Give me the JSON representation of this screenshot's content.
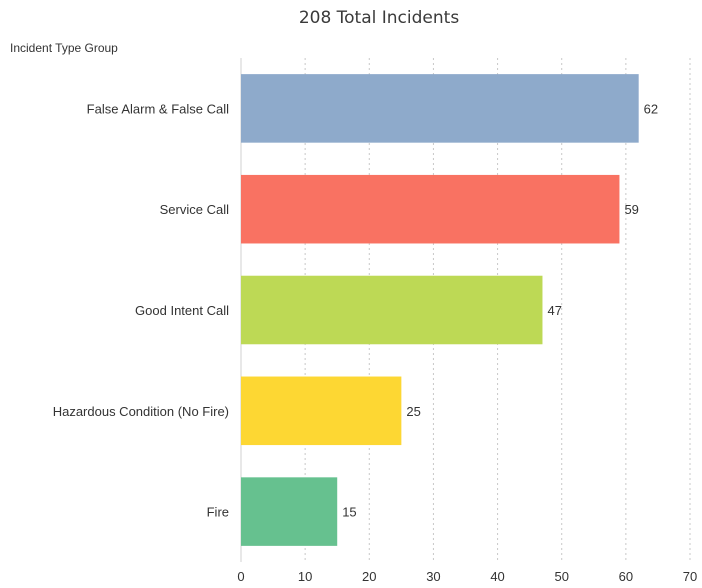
{
  "chart_data": {
    "type": "bar",
    "orientation": "horizontal",
    "title": "208 Total Incidents",
    "ylabel": "Incident Type Group",
    "xlabel": "",
    "categories": [
      "False Alarm & False Call",
      "Service Call",
      "Good Intent Call",
      "Hazardous Condition (No Fire)",
      "Fire"
    ],
    "values": [
      62,
      59,
      47,
      25,
      15
    ],
    "colors": [
      "#8eaacb",
      "#f97262",
      "#bdd955",
      "#fdd733",
      "#66c18f"
    ],
    "xlim": [
      0,
      70
    ],
    "xticks": [
      0,
      10,
      20,
      30,
      40,
      50,
      60,
      70
    ],
    "grid": true,
    "data_labels": true,
    "legend": "none"
  }
}
